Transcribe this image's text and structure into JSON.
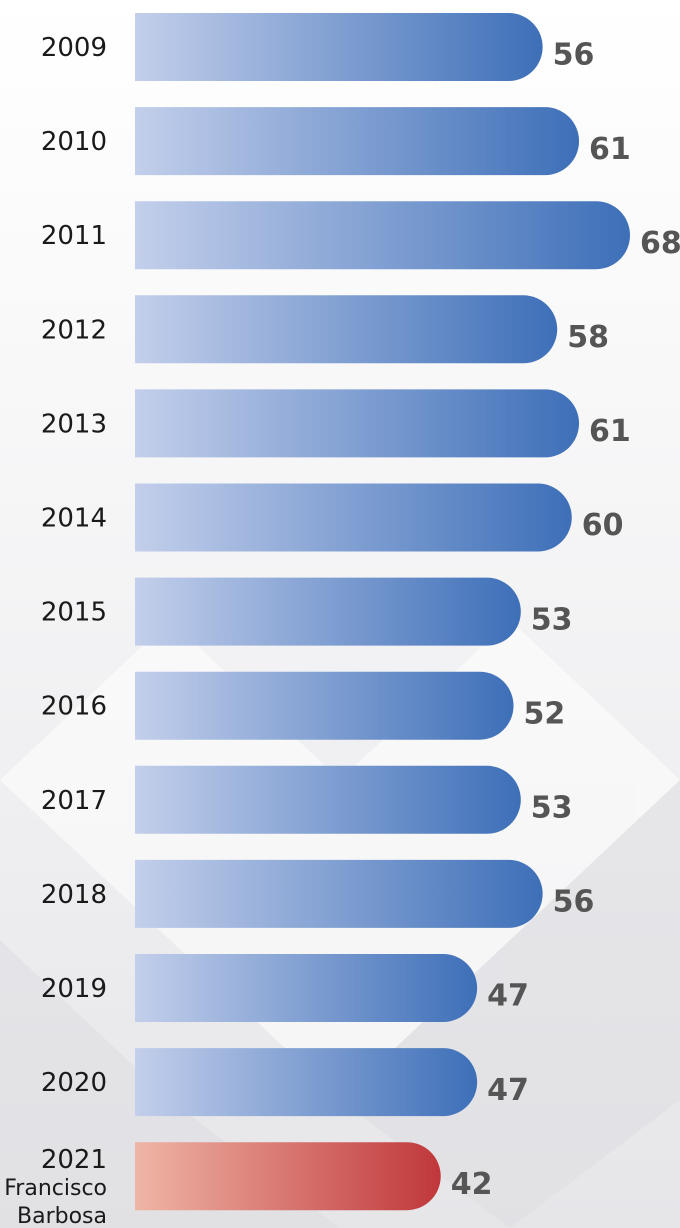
{
  "chart_data": {
    "type": "bar",
    "orientation": "horizontal",
    "title": "",
    "xlabel": "",
    "ylabel": "",
    "xlim": [
      0,
      68
    ],
    "grid": false,
    "legend": "none",
    "categories": [
      "2009",
      "2010",
      "2011",
      "2012",
      "2013",
      "2014",
      "2015",
      "2016",
      "2017",
      "2018",
      "2019",
      "2020",
      "2021"
    ],
    "sublabels": {
      "2021": [
        "Francisco",
        "Barbosa"
      ]
    },
    "values": [
      56,
      61,
      68,
      58,
      61,
      60,
      53,
      52,
      53,
      56,
      47,
      47,
      42
    ],
    "highlight_category": "2021",
    "colors": {
      "bar_start": "#c3cfeb",
      "bar_end": "#3d6fb8",
      "highlight_start": "#efb5a6",
      "highlight_end": "#c0373a",
      "value_text": "#555555",
      "label_text": "#1a1a1a"
    }
  }
}
